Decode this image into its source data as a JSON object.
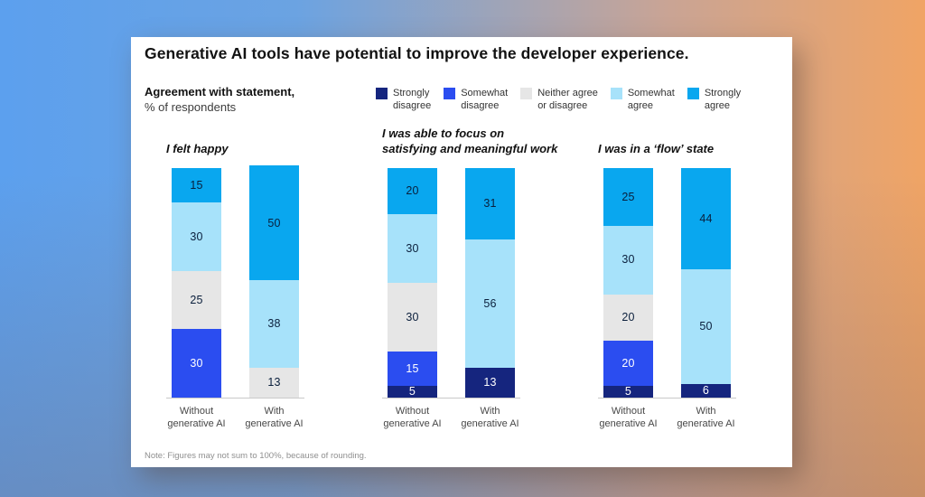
{
  "background": {
    "gradient_left_color": "#5ca0ee",
    "gradient_right_color": "#f0a465",
    "card_color": "#ffffff"
  },
  "chart_data": {
    "type": "bar",
    "variant": "stacked-vertical-100pct",
    "title": "Generative AI tools have potential to improve the developer experience.",
    "subtitle_bold": "Agreement with statement,",
    "subtitle_regular": "% of respondents",
    "note": "Note: Figures may not sum to 100%, because of rounding.",
    "unit": "%",
    "ylim": [
      0,
      100
    ],
    "grid": false,
    "legend_position": "top-right",
    "categories": [
      {
        "label": "Strongly disagree",
        "label_lines": [
          "Strongly",
          "disagree"
        ],
        "color": "#15257e",
        "value_text_color": "#ffffff"
      },
      {
        "label": "Somewhat disagree",
        "label_lines": [
          "Somewhat",
          "disagree"
        ],
        "color": "#2b4df0",
        "value_text_color": "#ffffff"
      },
      {
        "label": "Neither agree or disagree",
        "label_lines": [
          "Neither agree",
          "or disagree"
        ],
        "color": "#e6e6e6",
        "value_text_color": "#0a1f3c"
      },
      {
        "label": "Somewhat agree",
        "label_lines": [
          "Somewhat",
          "agree"
        ],
        "color": "#a7e2fa",
        "value_text_color": "#0a1f3c"
      },
      {
        "label": "Strongly agree",
        "label_lines": [
          "Strongly",
          "agree"
        ],
        "color": "#09a7ef",
        "value_text_color": "#0a1f3c"
      }
    ],
    "groups": [
      {
        "title": "I felt happy",
        "title_lines": [
          "I felt happy"
        ],
        "bars": [
          {
            "label": "Without generative AI",
            "label_lines": [
              "Without",
              "generative AI"
            ],
            "segments_bottom_to_top": [
              {
                "category": "Somewhat disagree",
                "category_index": 1,
                "value": 30
              },
              {
                "category": "Neither agree or disagree",
                "category_index": 2,
                "value": 25
              },
              {
                "category": "Somewhat agree",
                "category_index": 3,
                "value": 30
              },
              {
                "category": "Strongly agree",
                "category_index": 4,
                "value": 15
              }
            ]
          },
          {
            "label": "With generative AI",
            "label_lines": [
              "With",
              "generative AI"
            ],
            "segments_bottom_to_top": [
              {
                "category": "Neither agree or disagree",
                "category_index": 2,
                "value": 13
              },
              {
                "category": "Somewhat agree",
                "category_index": 3,
                "value": 38
              },
              {
                "category": "Strongly agree",
                "category_index": 4,
                "value": 50
              }
            ]
          }
        ]
      },
      {
        "title": "I was able to focus on satisfying and meaningful work",
        "title_lines": [
          "I was able to focus on",
          "satisfying and meaningful work"
        ],
        "bars": [
          {
            "label": "Without generative AI",
            "label_lines": [
              "Without",
              "generative AI"
            ],
            "segments_bottom_to_top": [
              {
                "category": "Strongly disagree",
                "category_index": 0,
                "value": 5
              },
              {
                "category": "Somewhat disagree",
                "category_index": 1,
                "value": 15
              },
              {
                "category": "Neither agree or disagree",
                "category_index": 2,
                "value": 30
              },
              {
                "category": "Somewhat agree",
                "category_index": 3,
                "value": 30
              },
              {
                "category": "Strongly agree",
                "category_index": 4,
                "value": 20
              }
            ]
          },
          {
            "label": "With generative AI",
            "label_lines": [
              "With",
              "generative AI"
            ],
            "segments_bottom_to_top": [
              {
                "category": "Strongly disagree",
                "category_index": 0,
                "value": 13
              },
              {
                "category": "Somewhat agree",
                "category_index": 3,
                "value": 56
              },
              {
                "category": "Strongly agree",
                "category_index": 4,
                "value": 31
              }
            ]
          }
        ]
      },
      {
        "title": "I was in a ‘flow’ state",
        "title_lines": [
          "I was in a ‘flow’ state"
        ],
        "bars": [
          {
            "label": "Without generative AI",
            "label_lines": [
              "Without",
              "generative AI"
            ],
            "segments_bottom_to_top": [
              {
                "category": "Strongly disagree",
                "category_index": 0,
                "value": 5
              },
              {
                "category": "Somewhat disagree",
                "category_index": 1,
                "value": 20
              },
              {
                "category": "Neither agree or disagree",
                "category_index": 2,
                "value": 20
              },
              {
                "category": "Somewhat agree",
                "category_index": 3,
                "value": 30
              },
              {
                "category": "Strongly agree",
                "category_index": 4,
                "value": 25
              }
            ]
          },
          {
            "label": "With generative AI",
            "label_lines": [
              "With",
              "generative AI"
            ],
            "segments_bottom_to_top": [
              {
                "category": "Strongly disagree",
                "category_index": 0,
                "value": 6
              },
              {
                "category": "Somewhat agree",
                "category_index": 3,
                "value": 50
              },
              {
                "category": "Strongly agree",
                "category_index": 4,
                "value": 44
              }
            ]
          }
        ]
      }
    ]
  }
}
